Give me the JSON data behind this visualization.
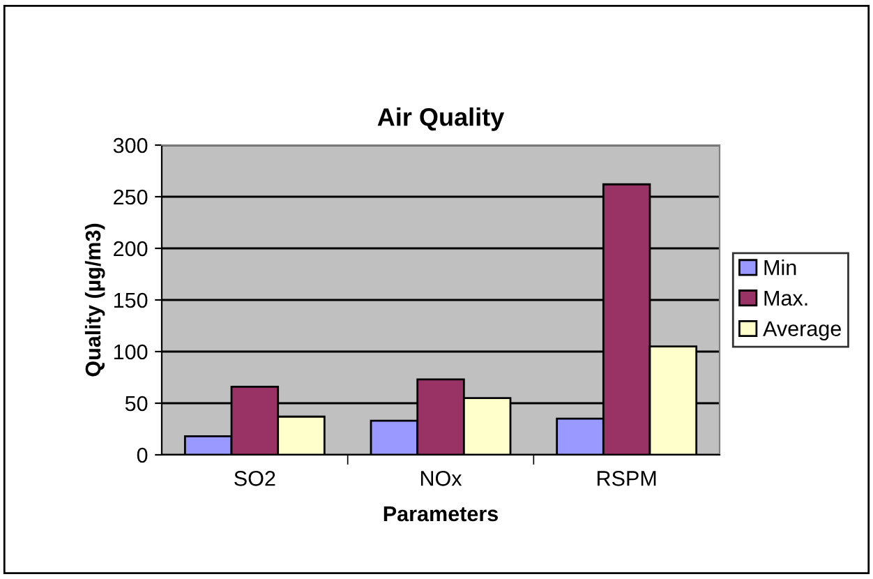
{
  "chart_data": {
    "type": "bar",
    "title": "Air Quality",
    "xlabel": "Parameters",
    "ylabel": "Quality (µg/m3)",
    "categories": [
      "SO2",
      "NOx",
      "RSPM"
    ],
    "series": [
      {
        "name": "Min",
        "color": "#9999ff",
        "values": [
          18,
          33,
          35
        ]
      },
      {
        "name": "Max.",
        "color": "#993366",
        "values": [
          66,
          73,
          262
        ]
      },
      {
        "name": "Average",
        "color": "#ffffcc",
        "values": [
          37,
          55,
          105
        ]
      }
    ],
    "ylim": [
      0,
      300
    ],
    "yticks": [
      0,
      50,
      100,
      150,
      200,
      250,
      300
    ],
    "grid": "y",
    "legend": "right"
  }
}
